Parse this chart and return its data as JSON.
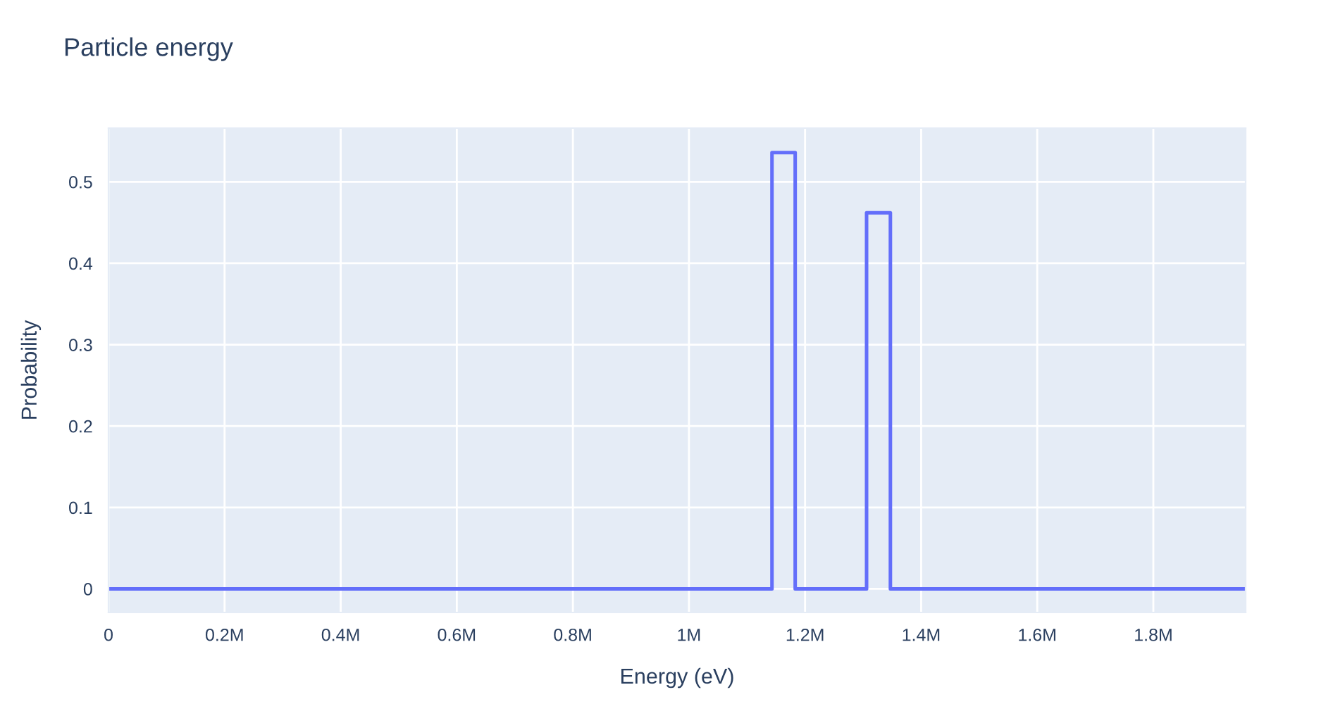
{
  "chart_data": {
    "type": "step",
    "title": "Particle energy",
    "xlabel": "Energy (eV)",
    "ylabel": "Probability",
    "x": [
      0,
      1143000,
      1183000,
      1306000,
      1347000,
      1959000
    ],
    "series": [
      {
        "color": "#636efa",
        "values": [
          0,
          0.536,
          0,
          0.462,
          0,
          0
        ]
      }
    ],
    "xlim": [
      0,
      1959000
    ],
    "xticks": [
      0,
      {
        "value": 200000,
        "label": "0.2M"
      },
      {
        "value": 400000,
        "label": "0.4M"
      },
      {
        "value": 600000,
        "label": "0.6M"
      },
      {
        "value": 800000,
        "label": "0.8M"
      },
      {
        "value": 1000000,
        "label": "1M"
      },
      {
        "value": 1200000,
        "label": "1.2M"
      },
      {
        "value": 1400000,
        "label": "1.4M"
      },
      {
        "value": 1600000,
        "label": "1.6M"
      },
      {
        "value": 1800000,
        "label": "1.8M"
      }
    ],
    "ylim": [
      -0.029,
      0.566
    ],
    "yticks": [
      0,
      0.1,
      0.2,
      0.3,
      0.4,
      0.5
    ],
    "grid": true,
    "legend": false,
    "marker": "none",
    "line_style": "solid"
  }
}
